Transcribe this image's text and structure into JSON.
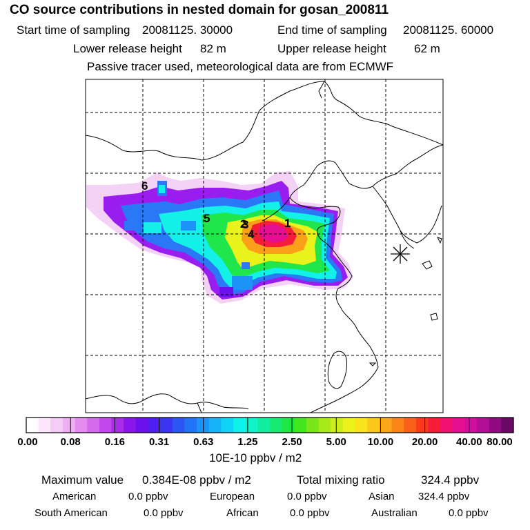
{
  "header": {
    "title": "CO  source contributions in nested domain for gosan_200811",
    "start_label": "Start time of sampling",
    "start_value": "20081125. 30000",
    "end_label": "End time of sampling",
    "end_value": "20081125. 60000",
    "lower_label": "Lower release height",
    "lower_value": "82 m",
    "upper_label": "Upper release height",
    "upper_value": "62 m",
    "note": "Passive tracer used, meteorological data are from ECMWF"
  },
  "map": {
    "site_markers": [
      "1",
      "2",
      "3",
      "4",
      "5",
      "6"
    ],
    "receptor_icon": "star-cross-icon"
  },
  "colorbar": {
    "tick_labels": [
      "0.00",
      "0.08",
      "0.16",
      "0.31",
      "0.63",
      "1.25",
      "2.50",
      "5.00",
      "10.00",
      "20.00",
      "40.00",
      "80.00"
    ],
    "unit_label": "10E-10 ppbv / m2",
    "colors": [
      "#ffffff",
      "#fbe6fb",
      "#f5ccf7",
      "#eeaff3",
      "#e48cef",
      "#d46aec",
      "#c247ec",
      "#a92ceb",
      "#8a16ec",
      "#6c10ee",
      "#4f1ef0",
      "#3b35f2",
      "#2c55f4",
      "#2274f6",
      "#1c93f7",
      "#16b3f7",
      "#10d4f5",
      "#0ff2ec",
      "#10f2c8",
      "#12ee9f",
      "#17ea72",
      "#1fe645",
      "#42e61e",
      "#79e61a",
      "#a8e91a",
      "#cdee1a",
      "#ecf21a",
      "#fae31a",
      "#fcc81a",
      "#fca71a",
      "#fc851a",
      "#fb601a",
      "#f9391a",
      "#f71c3a",
      "#f21070",
      "#e60f92",
      "#cf0f9d",
      "#b30f96",
      "#900b82",
      "#6a0866"
    ]
  },
  "footer": {
    "max_label": "Maximum value",
    "max_value": "0.384E-08 ppbv / m2",
    "total_label": "Total mixing ratio",
    "total_value": "324.4 ppbv",
    "american_label": "American",
    "american_value": "0.0 ppbv",
    "european_label": "European",
    "european_value": "0.0 ppbv",
    "asian_label": "Asian",
    "asian_value": "324.4 ppbv",
    "south_american_label": "South American",
    "south_american_value": "0.0 ppbv",
    "african_label": "African",
    "african_value": "0.0 ppbv",
    "australian_label": "Australian",
    "australian_value": "0.0 ppbv"
  }
}
